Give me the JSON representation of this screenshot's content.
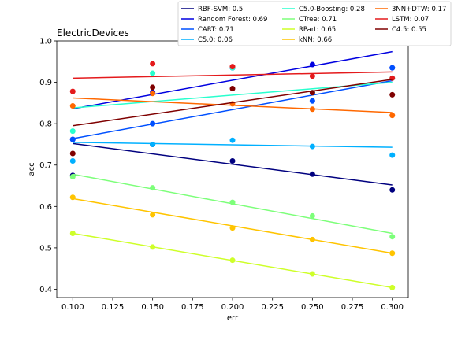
{
  "chart_data": {
    "type": "scatter",
    "title": "ElectricDevices",
    "xlabel": "err",
    "ylabel": "acc",
    "xlim": [
      0.09,
      0.31
    ],
    "ylim": [
      0.38,
      1.0
    ],
    "xticks": [
      0.1,
      0.125,
      0.15,
      0.175,
      0.2,
      0.225,
      0.25,
      0.275,
      0.3
    ],
    "yticks": [
      0.4,
      0.5,
      0.6,
      0.7,
      0.8,
      0.9,
      1.0
    ],
    "x": [
      0.1,
      0.15,
      0.2,
      0.25,
      0.3
    ],
    "grid": false,
    "legend_position": "top-right, above plot",
    "series": [
      {
        "name": "RBF-SVM: 0.5",
        "color": "#00007f",
        "values": [
          0.675,
          0.75,
          0.71,
          0.678,
          0.64
        ],
        "fit": [
          0.752,
          0.652
        ]
      },
      {
        "name": "Random Forest: 0.69",
        "color": "#0000e0",
        "values": [
          0.762,
          0.876,
          0.935,
          0.943,
          0.935
        ],
        "fit": [
          0.836,
          0.974
        ]
      },
      {
        "name": "CART: 0.71",
        "color": "#0050ff",
        "values": [
          0.762,
          0.8,
          0.935,
          0.855,
          0.935
        ],
        "fit": [
          0.764,
          0.904
        ]
      },
      {
        "name": "C5.0: 0.06",
        "color": "#00b0ff",
        "values": [
          0.71,
          0.75,
          0.76,
          0.745,
          0.724
        ],
        "fit": [
          0.755,
          0.743
        ]
      },
      {
        "name": "C5.0-Boosting: 0.28",
        "color": "#29ffce",
        "values": [
          0.782,
          0.922,
          0.935,
          0.875,
          0.91
        ],
        "fit": [
          0.838,
          0.9
        ]
      },
      {
        "name": "CTree: 0.71",
        "color": "#7dff7a",
        "values": [
          0.672,
          0.645,
          0.61,
          0.577,
          0.527
        ],
        "fit": [
          0.678,
          0.535
        ]
      },
      {
        "name": "RPart: 0.65",
        "color": "#ceff29",
        "values": [
          0.535,
          0.502,
          0.47,
          0.437,
          0.404
        ],
        "fit": [
          0.535,
          0.404
        ]
      },
      {
        "name": "kNN: 0.66",
        "color": "#ffc400",
        "values": [
          0.622,
          0.58,
          0.548,
          0.52,
          0.487
        ],
        "fit": [
          0.619,
          0.487
        ]
      },
      {
        "name": "3NN+DTW: 0.17",
        "color": "#ff6800",
        "values": [
          0.843,
          0.873,
          0.848,
          0.835,
          0.82
        ],
        "fit": [
          0.862,
          0.827
        ]
      },
      {
        "name": "LSTM: 0.07",
        "color": "#e41a1c",
        "values": [
          0.878,
          0.945,
          0.938,
          0.915,
          0.91
        ],
        "fit": [
          0.91,
          0.925
        ]
      },
      {
        "name": "C4.5: 0.55",
        "color": "#7f0000",
        "values": [
          0.728,
          0.888,
          0.885,
          0.875,
          0.87
        ],
        "fit": [
          0.795,
          0.907
        ]
      }
    ]
  }
}
